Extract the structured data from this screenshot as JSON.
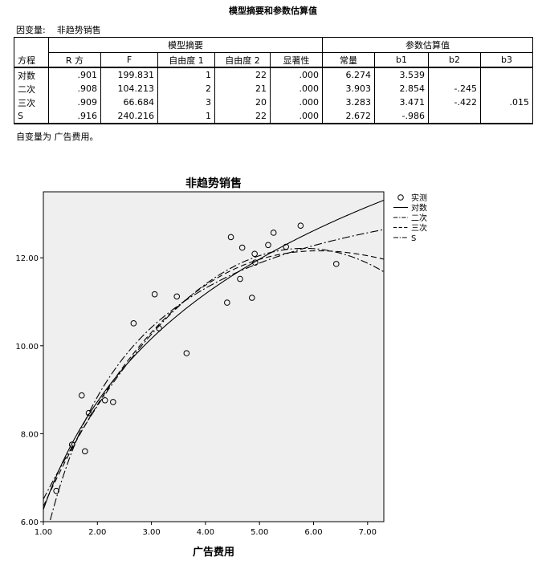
{
  "table": {
    "title": "模型摘要和参数估算值",
    "dependent_label": "因变量:",
    "dependent_value": "非趋势销售",
    "group_model": "模型摘要",
    "group_params": "参数估算值",
    "row_header": "方程",
    "columns": [
      "R 方",
      "F",
      "自由度 1",
      "自由度 2",
      "显著性",
      "常量",
      "b1",
      "b2",
      "b3"
    ],
    "rows": [
      {
        "eq": "对数",
        "vals": [
          ".901",
          "199.831",
          "1",
          "22",
          ".000",
          "6.274",
          "3.539",
          "",
          ""
        ]
      },
      {
        "eq": "二次",
        "vals": [
          ".908",
          "104.213",
          "2",
          "21",
          ".000",
          "3.903",
          "2.854",
          "-.245",
          ""
        ]
      },
      {
        "eq": "三次",
        "vals": [
          ".909",
          "66.684",
          "3",
          "20",
          ".000",
          "3.283",
          "3.471",
          "-.422",
          ".015"
        ]
      },
      {
        "eq": "S",
        "vals": [
          ".916",
          "240.216",
          "1",
          "22",
          ".000",
          "2.672",
          "-.986",
          "",
          ""
        ]
      }
    ],
    "footnote": "自变量为 广告费用。"
  },
  "chart_data": {
    "type": "scatter",
    "title": "非趋势销售",
    "xlabel": "广告费用",
    "ylabel": "",
    "xlim": [
      1.0,
      7.3
    ],
    "ylim": [
      6.0,
      13.5
    ],
    "xticks": [
      "1.00",
      "2.00",
      "3.00",
      "4.00",
      "5.00",
      "6.00",
      "7.00"
    ],
    "yticks": [
      "6.00",
      "8.00",
      "10.00",
      "12.00"
    ],
    "background": "#efefef",
    "legend_position": "right",
    "observed": {
      "name": "实测",
      "x": [
        1.24,
        1.53,
        1.71,
        1.77,
        1.84,
        2.14,
        2.29,
        2.67,
        3.06,
        3.14,
        3.47,
        3.65,
        4.4,
        4.47,
        4.64,
        4.68,
        4.86,
        4.91,
        4.92,
        5.16,
        5.26,
        5.49,
        5.76,
        6.42
      ],
      "y": [
        6.7,
        7.75,
        8.87,
        7.6,
        8.47,
        8.76,
        8.72,
        10.51,
        11.17,
        10.4,
        11.12,
        9.83,
        10.98,
        12.47,
        11.52,
        12.23,
        11.09,
        12.09,
        11.89,
        12.29,
        12.57,
        12.25,
        12.73,
        11.86
      ]
    },
    "series": [
      {
        "name": "对数",
        "model": "log",
        "coef": [
          6.274,
          3.539
        ],
        "dash": ""
      },
      {
        "name": "二次",
        "model": "quadratic",
        "coef": [
          3.903,
          2.854,
          -0.245
        ],
        "dash": "9,3,2,3"
      },
      {
        "name": "三次",
        "model": "cubic",
        "coef": [
          3.283,
          3.471,
          -0.422,
          0.015
        ],
        "dash": "7,4"
      },
      {
        "name": "S",
        "model": "s",
        "coef": [
          2.672,
          -0.986
        ],
        "dash": "10,3,2,3"
      }
    ]
  }
}
